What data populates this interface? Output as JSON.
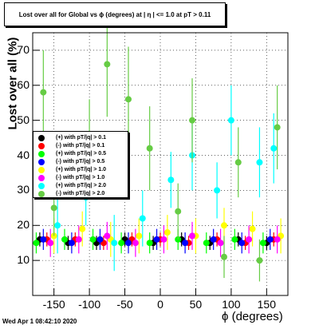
{
  "chart_data": {
    "type": "scatter",
    "title": "Lost over all for Global vs ϕ (degrees) at | η | <= 1.0 at pT > 0.11",
    "xlabel": "ϕ (degrees)",
    "ylabel": "Lost over all (%)",
    "xlim": [
      -180,
      180
    ],
    "ylim": [
      0,
      75
    ],
    "x_ticks": [
      "-150",
      "-100",
      "-50",
      "0",
      "50",
      "100",
      "150"
    ],
    "y_ticks": [
      "10",
      "20",
      "30",
      "40",
      "50",
      "60",
      "70"
    ],
    "grid": true,
    "legend_position": "left-middle",
    "series": [
      {
        "name": "(+) with pT/|q| > 0.1",
        "color": "#000000",
        "x": [
          -170,
          -130,
          -90,
          -50,
          -10,
          30,
          70,
          110,
          150
        ],
        "y": [
          16,
          15,
          15,
          16,
          15,
          16,
          15,
          16,
          15
        ],
        "err": [
          2,
          2,
          2,
          2,
          2,
          2,
          2,
          2,
          2
        ]
      },
      {
        "name": "(-) with pT/|q| > 0.1",
        "color": "#ff0000",
        "x": [
          -160,
          -120,
          -80,
          -40,
          0,
          40,
          80,
          120,
          160
        ],
        "y": [
          16,
          16,
          15,
          16,
          16,
          15,
          16,
          15,
          16
        ],
        "err": [
          2,
          2,
          2,
          2,
          2,
          2,
          2,
          2,
          2
        ]
      },
      {
        "name": "(+) with pT/|q| > 0.5",
        "color": "#00ff00",
        "x": [
          -175,
          -135,
          -95,
          -55,
          -15,
          25,
          65,
          105,
          145
        ],
        "y": [
          15,
          16,
          16,
          15,
          15,
          16,
          15,
          16,
          15
        ],
        "err": [
          3,
          3,
          3,
          3,
          3,
          3,
          3,
          3,
          3
        ]
      },
      {
        "name": "(-) with pT/|q| > 0.5",
        "color": "#0000ff",
        "x": [
          -165,
          -125,
          -85,
          -45,
          -5,
          35,
          75,
          115,
          155
        ],
        "y": [
          16,
          15,
          16,
          15,
          16,
          15,
          16,
          15,
          16
        ],
        "err": [
          3,
          3,
          3,
          3,
          3,
          3,
          3,
          3,
          3
        ]
      },
      {
        "name": "(+) with pT/|q| > 1.0",
        "color": "#ffff00",
        "x": [
          -150,
          -110,
          -70,
          -30,
          10,
          50,
          90,
          130,
          170
        ],
        "y": [
          17,
          19,
          16,
          17,
          18,
          17,
          20,
          19,
          17
        ],
        "err": [
          5,
          5,
          5,
          5,
          5,
          5,
          5,
          5,
          5
        ]
      },
      {
        "name": "(-) with pT/|q| > 1.0",
        "color": "#ff00ff",
        "x": [
          -155,
          -115,
          -75,
          -35,
          5,
          45,
          85,
          125,
          165
        ],
        "y": [
          15,
          16,
          17,
          15,
          16,
          17,
          15,
          16,
          16
        ],
        "err": [
          4,
          4,
          4,
          4,
          4,
          4,
          4,
          4,
          4
        ]
      },
      {
        "name": "(+) with pT/|q| > 2.0",
        "color": "#00ffff",
        "x": [
          -145,
          -105,
          -65,
          -25,
          15,
          45,
          80,
          100,
          140,
          160
        ],
        "y": [
          20,
          28,
          15,
          22,
          33,
          40,
          30,
          50,
          38,
          42
        ],
        "err": [
          8,
          8,
          8,
          8,
          8,
          10,
          8,
          10,
          10,
          10
        ]
      },
      {
        "name": "(-) with pT/|q| > 2.0",
        "color": "#66cc44",
        "x": [
          -165,
          -150,
          -100,
          -75,
          -45,
          -15,
          25,
          45,
          90,
          110,
          140,
          165
        ],
        "y": [
          58,
          25,
          44,
          66,
          56,
          42,
          24,
          50,
          11,
          38,
          10,
          48
        ],
        "err": [
          12,
          8,
          12,
          15,
          15,
          12,
          8,
          12,
          6,
          10,
          6,
          12
        ]
      }
    ]
  },
  "footer": {
    "timestamp": "Wed Apr  1 08:42:10 2020"
  }
}
